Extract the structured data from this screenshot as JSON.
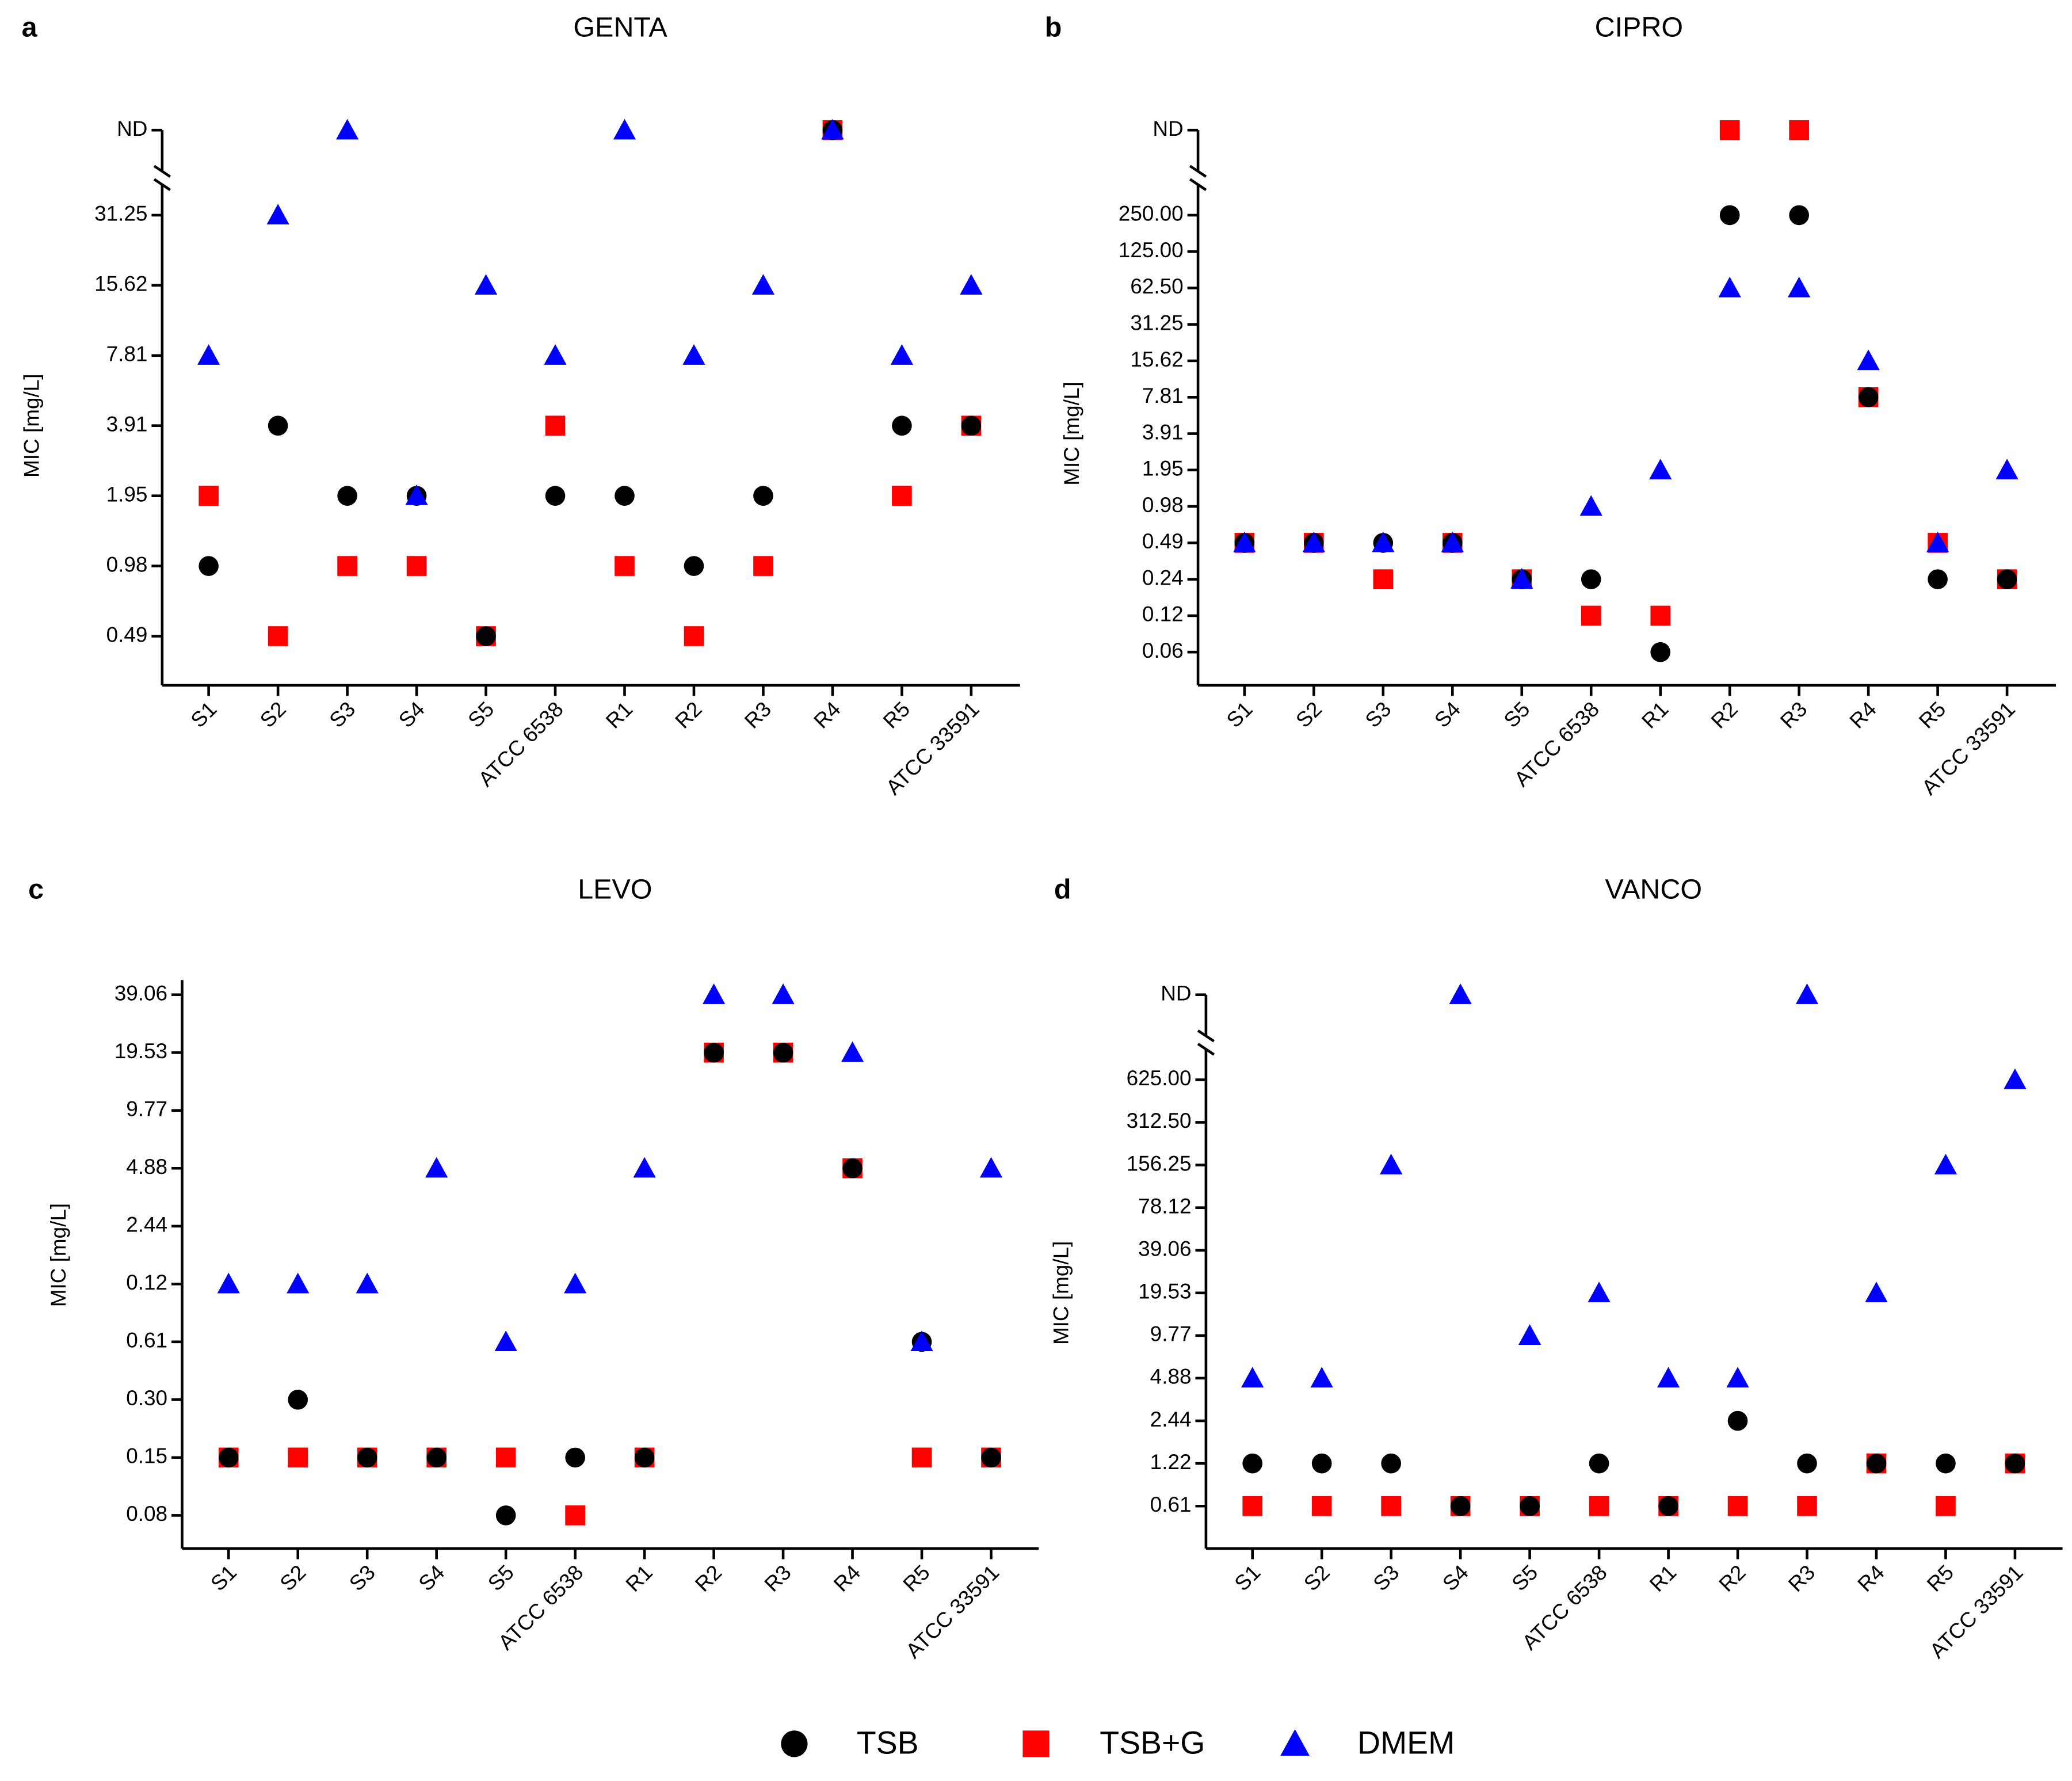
{
  "chart_data": [
    {
      "type": "scatter",
      "panel": "a",
      "title": "GENTA",
      "y_label": "MIC [mg/L]",
      "categories": [
        "S1",
        "S2",
        "S3",
        "S4",
        "S5",
        "ATCC 6538",
        "R1",
        "R2",
        "R3",
        "R4",
        "R5",
        "ATCC 33591"
      ],
      "ycategories": [
        "0.49",
        "0.98",
        "1.95",
        "3.91",
        "7.81",
        "15.62",
        "31.25",
        "ND"
      ],
      "series": [
        {
          "name": "TSB",
          "color": "#000000",
          "marker": "circle",
          "values": [
            "0.98",
            "3.91",
            "1.95",
            "1.95",
            "0.49",
            "1.95",
            "1.95",
            "0.98",
            "1.95",
            "ND",
            "3.91",
            "3.91"
          ]
        },
        {
          "name": "TSB+G",
          "color": "#ff0000",
          "marker": "square",
          "values": [
            "1.95",
            "0.49",
            "0.98",
            "0.98",
            "0.49",
            "3.91",
            "0.98",
            "0.49",
            "0.98",
            "ND",
            "1.95",
            "3.91"
          ]
        },
        {
          "name": "DMEM",
          "color": "#0000ff",
          "marker": "triangle",
          "values": [
            "7.81",
            "31.25",
            "ND",
            "1.95",
            "15.62",
            "7.81",
            "ND",
            "7.81",
            "15.62",
            "ND",
            "7.81",
            "15.62"
          ]
        }
      ]
    },
    {
      "type": "scatter",
      "panel": "b",
      "title": "CIPRO",
      "y_label": "MIC [mg/L]",
      "categories": [
        "S1",
        "S2",
        "S3",
        "S4",
        "S5",
        "ATCC 6538",
        "R1",
        "R2",
        "R3",
        "R4",
        "R5",
        "ATCC 33591"
      ],
      "ycategories": [
        "0.06",
        "0.12",
        "0.24",
        "0.49",
        "0.98",
        "1.95",
        "3.91",
        "7.81",
        "15.62",
        "31.25",
        "62.50",
        "125.00",
        "250.00",
        "ND"
      ],
      "series": [
        {
          "name": "TSB",
          "color": "#000000",
          "marker": "circle",
          "values": [
            "0.49",
            "0.49",
            "0.49",
            "0.49",
            "0.24",
            "0.24",
            "0.06",
            "250.00",
            "250.00",
            "7.81",
            "0.24",
            "0.24"
          ]
        },
        {
          "name": "TSB+G",
          "color": "#ff0000",
          "marker": "square",
          "values": [
            "0.49",
            "0.49",
            "0.24",
            "0.49",
            "0.24",
            "0.12",
            "0.12",
            "ND",
            "ND",
            "7.81",
            "0.49",
            "0.24"
          ]
        },
        {
          "name": "DMEM",
          "color": "#0000ff",
          "marker": "triangle",
          "values": [
            "0.49",
            "0.49",
            "0.49",
            "0.49",
            "0.24",
            "0.98",
            "1.95",
            "62.50",
            "62.50",
            "15.62",
            "0.49",
            "1.95"
          ]
        }
      ]
    },
    {
      "type": "scatter",
      "panel": "c",
      "title": "LEVO",
      "y_label": "MIC [mg/L]",
      "categories": [
        "S1",
        "S2",
        "S3",
        "S4",
        "S5",
        "ATCC 6538",
        "R1",
        "R2",
        "R3",
        "R4",
        "R5",
        "ATCC 33591"
      ],
      "ycategories": [
        "0.08",
        "0.15",
        "0.30",
        "0.61",
        "0.12",
        "2.44",
        "4.88",
        "9.77",
        "19.53",
        "39.06"
      ],
      "series": [
        {
          "name": "TSB",
          "color": "#000000",
          "marker": "circle",
          "values": [
            "0.15",
            "0.30",
            "0.15",
            "0.15",
            "0.08",
            "0.15",
            "0.15",
            "19.53",
            "19.53",
            "4.88",
            "0.61",
            "0.15"
          ]
        },
        {
          "name": "TSB+G",
          "color": "#ff0000",
          "marker": "square",
          "values": [
            "0.15",
            "0.15",
            "0.15",
            "0.15",
            "0.15",
            "0.08",
            "0.15",
            "19.53",
            "19.53",
            "4.88",
            "0.15",
            "0.15"
          ]
        },
        {
          "name": "DMEM",
          "color": "#0000ff",
          "marker": "triangle",
          "values": [
            "0.12",
            "0.12",
            "0.12",
            "4.88",
            "0.61",
            "0.12",
            "4.88",
            "39.06",
            "39.06",
            "19.53",
            "0.61",
            "4.88"
          ]
        }
      ]
    },
    {
      "type": "scatter",
      "panel": "d",
      "title": "VANCO",
      "y_label": "MIC [mg/L]",
      "categories": [
        "S1",
        "S2",
        "S3",
        "S4",
        "S5",
        "ATCC 6538",
        "R1",
        "R2",
        "R3",
        "R4",
        "R5",
        "ATCC 33591"
      ],
      "ycategories": [
        "0.61",
        "1.22",
        "2.44",
        "4.88",
        "9.77",
        "19.53",
        "39.06",
        "78.12",
        "156.25",
        "312.50",
        "625.00",
        "ND"
      ],
      "series": [
        {
          "name": "TSB",
          "color": "#000000",
          "marker": "circle",
          "values": [
            "1.22",
            "1.22",
            "1.22",
            "0.61",
            "0.61",
            "1.22",
            "0.61",
            "2.44",
            "1.22",
            "1.22",
            "1.22",
            "1.22"
          ]
        },
        {
          "name": "TSB+G",
          "color": "#ff0000",
          "marker": "square",
          "values": [
            "0.61",
            "0.61",
            "0.61",
            "0.61",
            "0.61",
            "0.61",
            "0.61",
            "0.61",
            "0.61",
            "1.22",
            "0.61",
            "1.22"
          ]
        },
        {
          "name": "DMEM",
          "color": "#0000ff",
          "marker": "triangle",
          "values": [
            "4.88",
            "4.88",
            "156.25",
            "ND",
            "9.77",
            "19.53",
            "4.88",
            "4.88",
            "ND",
            "19.53",
            "156.25",
            "625.00"
          ]
        }
      ]
    }
  ]
}
